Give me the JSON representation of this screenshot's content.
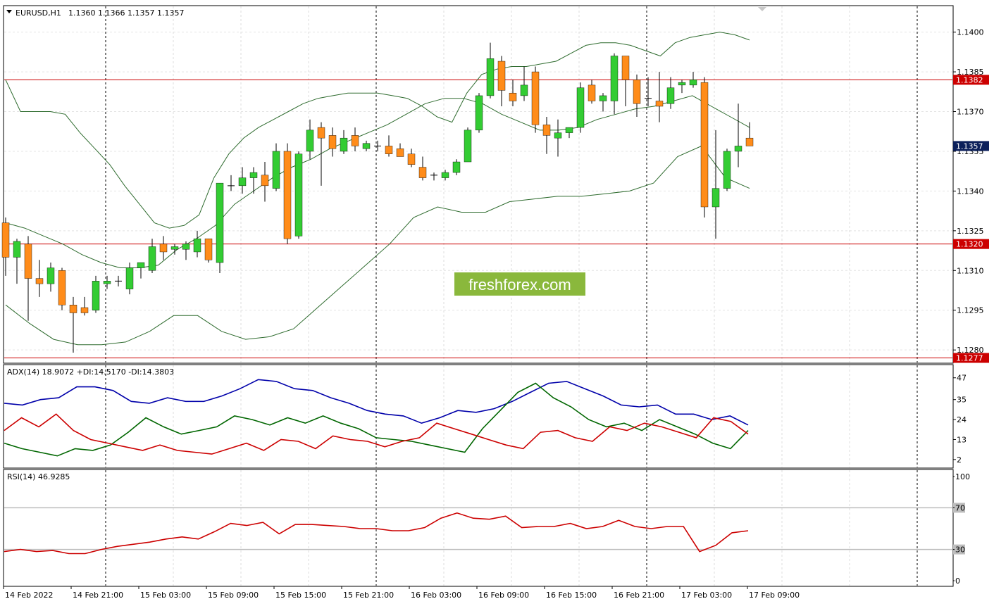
{
  "main_header": {
    "symbol": "EURUSD,H1",
    "ohlc": "1.1360 1.1366 1.1357 1.1357"
  },
  "watermark": "freshforex.com",
  "adx_header": "ADX(14) 18.9072 +DI:14.5170 -DI:14.3803",
  "rsi_header": "RSI(14) 46.9285",
  "price_ticks": [
    "1.1400",
    "1.1385",
    "1.1370",
    "1.1355",
    "1.1340",
    "1.1325",
    "1.1310",
    "1.1295",
    "1.1280"
  ],
  "adx_ticks": [
    "47",
    "35",
    "24",
    "13",
    "2"
  ],
  "rsi_ticks": [
    "100",
    "70",
    "30",
    "0"
  ],
  "time_labels": [
    "14 Feb 2022",
    "14 Feb 21:00",
    "15 Feb 03:00",
    "15 Feb 09:00",
    "15 Feb 15:00",
    "15 Feb 21:00",
    "16 Feb 03:00",
    "16 Feb 09:00",
    "16 Feb 15:00",
    "16 Feb 21:00",
    "17 Feb 03:00",
    "17 Feb 09:00"
  ],
  "colors": {
    "bull": "#33cc33",
    "bear": "#ff8c1a",
    "bb": "#2e6b2e",
    "hline": "#cc0000",
    "adx": "#0000aa",
    "plus_di": "#006600",
    "minus_di": "#cc0000",
    "rsi": "#cc0000",
    "current_price_box": "#0b1f5a",
    "watermark_bg": "#8ab83c"
  },
  "chart_data": {
    "type": "candlestick",
    "symbol": "EURUSD",
    "timeframe": "H1",
    "ylim": [
      1.1275,
      1.141
    ],
    "horizontal_lines": [
      {
        "value": 1.1382,
        "label": "1.1382"
      },
      {
        "value": 1.132,
        "label": "1.1320"
      },
      {
        "value": 1.1277,
        "label": "1.1277"
      }
    ],
    "current_price": {
      "value": 1.1357,
      "label": "1.1357"
    },
    "candles": [
      [
        1.1328,
        1.133,
        1.1308,
        1.1315
      ],
      [
        1.1315,
        1.1322,
        1.1305,
        1.1321
      ],
      [
        1.132,
        1.1323,
        1.1291,
        1.1307
      ],
      [
        1.1307,
        1.1314,
        1.13,
        1.1305
      ],
      [
        1.1305,
        1.1313,
        1.1302,
        1.1311
      ],
      [
        1.131,
        1.1311,
        1.1295,
        1.1297
      ],
      [
        1.1297,
        1.13,
        1.1279,
        1.1294
      ],
      [
        1.1296,
        1.13,
        1.1293,
        1.1294
      ],
      [
        1.1295,
        1.1308,
        1.1294,
        1.1306
      ],
      [
        1.1305,
        1.1308,
        1.1303,
        1.1306
      ],
      [
        1.1306,
        1.1308,
        1.1304,
        1.1306
      ],
      [
        1.1303,
        1.1313,
        1.1301,
        1.1311
      ],
      [
        1.1311,
        1.1313,
        1.1307,
        1.1313
      ],
      [
        1.131,
        1.1322,
        1.1309,
        1.1319
      ],
      [
        1.132,
        1.1323,
        1.1314,
        1.1317
      ],
      [
        1.1318,
        1.132,
        1.1316,
        1.1319
      ],
      [
        1.1318,
        1.1321,
        1.1314,
        1.132
      ],
      [
        1.1317,
        1.1325,
        1.1315,
        1.1322
      ],
      [
        1.1322,
        1.1322,
        1.1313,
        1.1314
      ],
      [
        1.1313,
        1.1343,
        1.1309,
        1.1343
      ],
      [
        1.1342,
        1.1346,
        1.134,
        1.1342
      ],
      [
        1.1342,
        1.1349,
        1.1339,
        1.1345
      ],
      [
        1.1345,
        1.1349,
        1.1339,
        1.1347
      ],
      [
        1.1346,
        1.1351,
        1.1336,
        1.1342
      ],
      [
        1.1341,
        1.1358,
        1.134,
        1.1355
      ],
      [
        1.1355,
        1.1358,
        1.132,
        1.1322
      ],
      [
        1.1323,
        1.1355,
        1.1322,
        1.1354
      ],
      [
        1.1355,
        1.1367,
        1.1352,
        1.1363
      ],
      [
        1.1364,
        1.1366,
        1.1342,
        1.136
      ],
      [
        1.1361,
        1.1364,
        1.1353,
        1.1356
      ],
      [
        1.1355,
        1.1363,
        1.1354,
        1.136
      ],
      [
        1.1361,
        1.1364,
        1.1355,
        1.1357
      ],
      [
        1.1356,
        1.1359,
        1.1355,
        1.1358
      ],
      [
        1.1357,
        1.1359,
        1.1355,
        1.1357
      ],
      [
        1.1357,
        1.1361,
        1.1353,
        1.1354
      ],
      [
        1.1356,
        1.1358,
        1.1353,
        1.1353
      ],
      [
        1.1354,
        1.1356,
        1.1349,
        1.135
      ],
      [
        1.1349,
        1.1353,
        1.1344,
        1.1345
      ],
      [
        1.1346,
        1.1347,
        1.1344,
        1.1346
      ],
      [
        1.1345,
        1.1348,
        1.1344,
        1.1347
      ],
      [
        1.1347,
        1.1352,
        1.1346,
        1.1351
      ],
      [
        1.1351,
        1.1364,
        1.1351,
        1.1363
      ],
      [
        1.1363,
        1.1377,
        1.1362,
        1.1376
      ],
      [
        1.1376,
        1.1396,
        1.1375,
        1.139
      ],
      [
        1.1389,
        1.1391,
        1.1372,
        1.1378
      ],
      [
        1.1377,
        1.1382,
        1.1372,
        1.1374
      ],
      [
        1.1376,
        1.1387,
        1.1374,
        1.138
      ],
      [
        1.1385,
        1.1387,
        1.1362,
        1.1365
      ],
      [
        1.1365,
        1.1368,
        1.1354,
        1.1361
      ],
      [
        1.136,
        1.1367,
        1.1353,
        1.1362
      ],
      [
        1.1362,
        1.1364,
        1.136,
        1.1364
      ],
      [
        1.1364,
        1.1381,
        1.1362,
        1.1379
      ],
      [
        1.138,
        1.1382,
        1.1373,
        1.1374
      ],
      [
        1.1374,
        1.1377,
        1.137,
        1.1376
      ],
      [
        1.1374,
        1.1392,
        1.1369,
        1.1391
      ],
      [
        1.1391,
        1.1391,
        1.1372,
        1.1382
      ],
      [
        1.1382,
        1.1384,
        1.1368,
        1.1373
      ],
      [
        1.1375,
        1.1383,
        1.1372,
        1.1375
      ],
      [
        1.1374,
        1.1385,
        1.1366,
        1.1372
      ],
      [
        1.1373,
        1.1383,
        1.1371,
        1.1379
      ],
      [
        1.138,
        1.1382,
        1.1377,
        1.1381
      ],
      [
        1.138,
        1.1385,
        1.1379,
        1.1382
      ],
      [
        1.1381,
        1.1383,
        1.133,
        1.1334
      ],
      [
        1.1334,
        1.1363,
        1.1322,
        1.1341
      ],
      [
        1.1341,
        1.1356,
        1.134,
        1.1355
      ],
      [
        1.1355,
        1.1373,
        1.1349,
        1.1357
      ],
      [
        1.136,
        1.1366,
        1.1357,
        1.1357
      ]
    ],
    "bb_upper": [
      1.1382,
      1.137,
      1.137,
      1.137,
      1.1369,
      1.1362,
      1.1356,
      1.135,
      1.1342,
      1.1335,
      1.1328,
      1.1326,
      1.1327,
      1.1331,
      1.1345,
      1.1354,
      1.136,
      1.1364,
      1.1367,
      1.137,
      1.1373,
      1.1375,
      1.1376,
      1.1377,
      1.1377,
      1.1377,
      1.1376,
      1.1375,
      1.1372,
      1.1368,
      1.1366,
      1.1377,
      1.1384,
      1.1386,
      1.1387,
      1.1387,
      1.1388,
      1.1389,
      1.1392,
      1.1395,
      1.1396,
      1.1396,
      1.1395,
      1.1393,
      1.1391,
      1.1396,
      1.1398,
      1.1399,
      1.14,
      1.1399,
      1.1397
    ],
    "bb_mid": [
      1.1328,
      1.1326,
      1.1323,
      1.132,
      1.1316,
      1.1313,
      1.1311,
      1.1311,
      1.1312,
      1.1318,
      1.1322,
      1.1327,
      1.1335,
      1.134,
      1.1345,
      1.1349,
      1.1352,
      1.1356,
      1.1359,
      1.1362,
      1.1365,
      1.1369,
      1.1373,
      1.1375,
      1.1375,
      1.1373,
      1.1369,
      1.1366,
      1.1363,
      1.1363,
      1.1364,
      1.1367,
      1.1369,
      1.1371,
      1.1372,
      1.1374,
      1.1376,
      1.1372,
      1.1368,
      1.1364
    ],
    "bb_lower": [
      1.1297,
      1.129,
      1.1284,
      1.1282,
      1.1282,
      1.1283,
      1.1287,
      1.1293,
      1.1293,
      1.1287,
      1.1284,
      1.1285,
      1.1288,
      1.1296,
      1.1304,
      1.1312,
      1.132,
      1.133,
      1.1334,
      1.1332,
      1.1332,
      1.1336,
      1.1337,
      1.1338,
      1.1338,
      1.1339,
      1.134,
      1.1343,
      1.1353,
      1.1357,
      1.1345,
      1.1341
    ],
    "adx": [
      33,
      32,
      35,
      36,
      42,
      42,
      40,
      34,
      33,
      36,
      34,
      34,
      37,
      41,
      46,
      45,
      41,
      40,
      36,
      33,
      29,
      27,
      26,
      22,
      25,
      29,
      28,
      30,
      34,
      39,
      44,
      45,
      41,
      37,
      32,
      31,
      32,
      27,
      27,
      24,
      26,
      21
    ],
    "plus_di": [
      11,
      8,
      6,
      4,
      8,
      7,
      10,
      17,
      25,
      20,
      16,
      18,
      20,
      26,
      24,
      21,
      25,
      22,
      26,
      22,
      19,
      14,
      13,
      12,
      10,
      8,
      6,
      19,
      29,
      39,
      44,
      36,
      31,
      24,
      20,
      22,
      18,
      24,
      20,
      16,
      11,
      8,
      18
    ],
    "minus_di": [
      18,
      25,
      20,
      27,
      18,
      13,
      11,
      9,
      7,
      10,
      7,
      6,
      5,
      8,
      11,
      7,
      13,
      12,
      8,
      15,
      13,
      12,
      9,
      12,
      14,
      22,
      19,
      16,
      13,
      10,
      8,
      17,
      18,
      14,
      12,
      20,
      18,
      22,
      20,
      17,
      14,
      25,
      23,
      16
    ],
    "rsi": [
      28,
      30,
      28,
      29,
      26,
      26,
      30,
      33,
      35,
      37,
      40,
      42,
      40,
      47,
      55,
      53,
      56,
      45,
      54,
      54,
      53,
      52,
      50,
      50,
      48,
      48,
      51,
      60,
      65,
      60,
      59,
      62,
      51,
      52,
      52,
      55,
      50,
      52,
      58,
      52,
      50,
      52,
      52,
      28,
      34,
      46,
      48
    ]
  }
}
